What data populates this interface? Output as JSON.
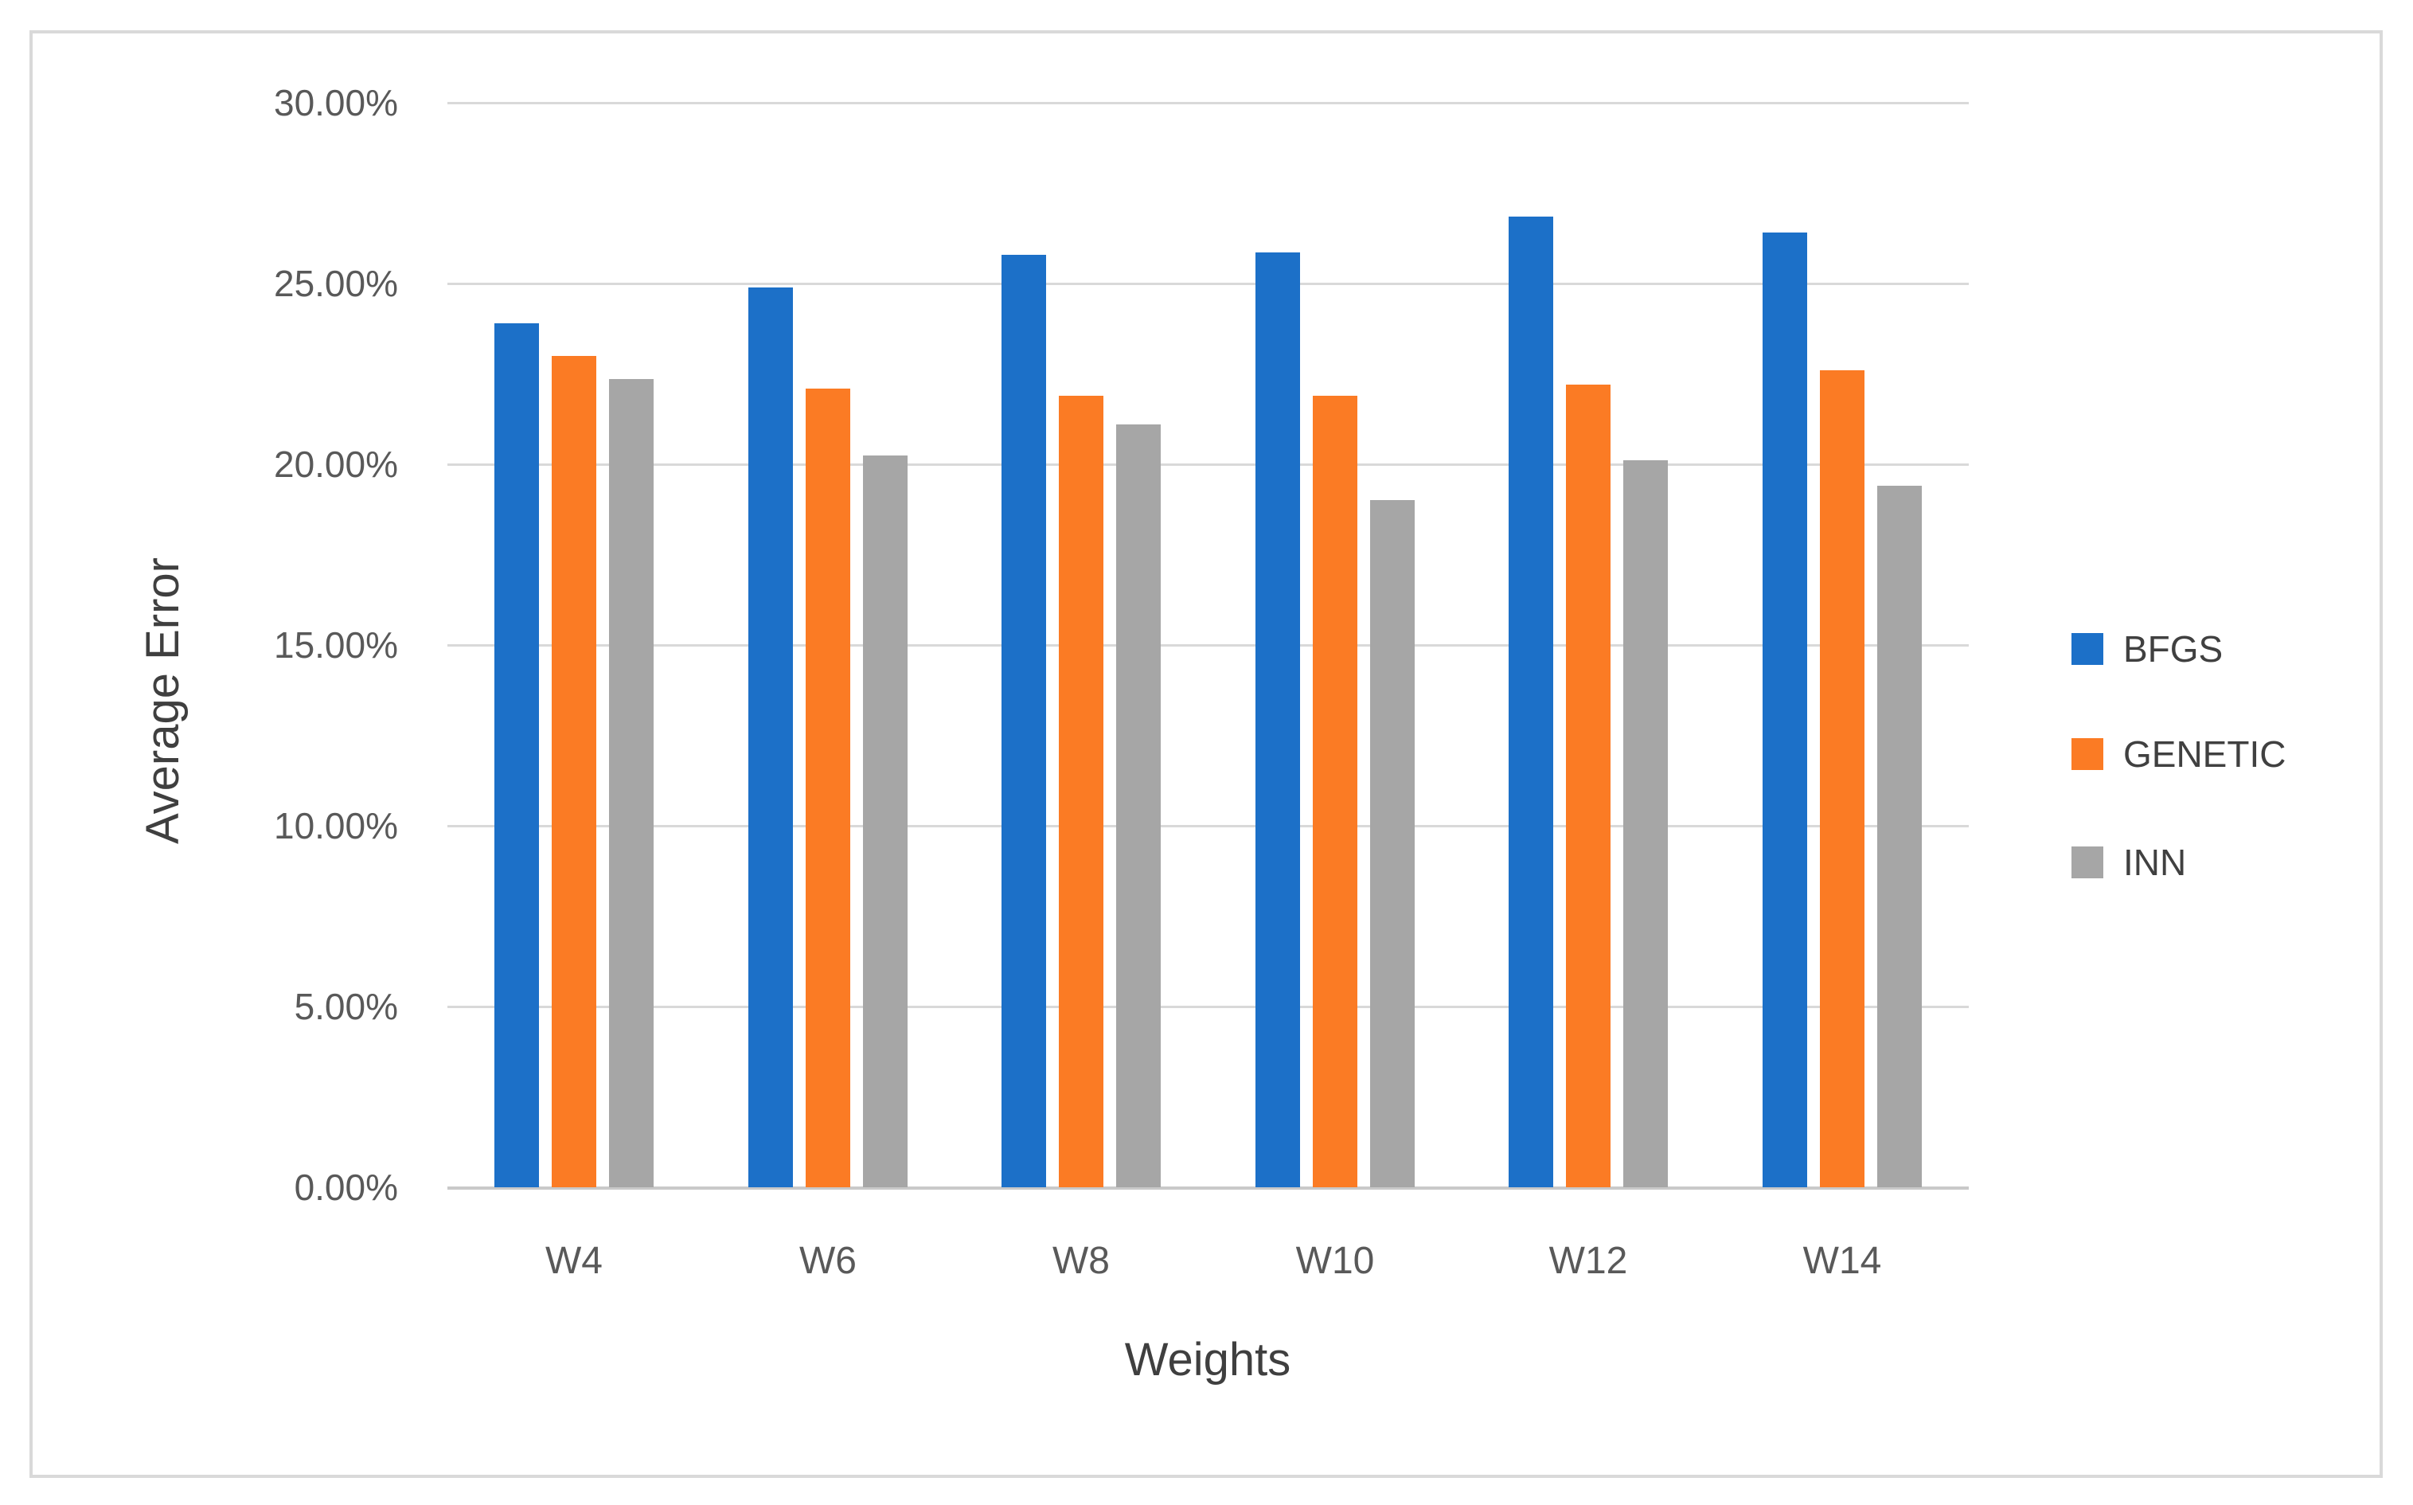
{
  "figure": {
    "background": "#ffffff",
    "frame_color": "#d9d9d9"
  },
  "chart_data": {
    "type": "bar",
    "title": "",
    "categories": [
      "W4",
      "W6",
      "W8",
      "W10",
      "W12",
      "W14"
    ],
    "series": [
      {
        "name": "BFGS",
        "color": "#1c70c8",
        "values": [
          23.9,
          24.9,
          25.8,
          25.85,
          26.85,
          26.4
        ]
      },
      {
        "name": "GENETIC",
        "color": "#fb7b24",
        "values": [
          23.0,
          22.1,
          21.9,
          21.9,
          22.2,
          22.6
        ]
      },
      {
        "name": "INN",
        "color": "#a6a6a6",
        "values": [
          22.35,
          20.25,
          21.1,
          19.0,
          20.1,
          19.4
        ]
      }
    ],
    "xlabel": "Weights",
    "ylabel": "Average Error",
    "ylim": [
      0,
      30
    ],
    "ytick_step": 5,
    "ytick_labels": [
      "0.00%",
      "5.00%",
      "10.00%",
      "15.00%",
      "20.00%",
      "25.00%",
      "30.00%"
    ],
    "grid": "horizontal",
    "legend_position": "right",
    "legend_entries": [
      "BFGS",
      "GENETIC",
      "INN"
    ],
    "gridline_color": "#d9d9d9",
    "axisline_color": "#c9c9c9",
    "tick_text_color": "#595959",
    "title_text_color": "#3f3f3f",
    "legend_text_color": "#404040"
  }
}
